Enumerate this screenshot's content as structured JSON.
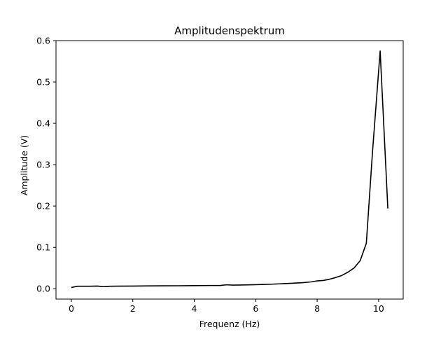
{
  "chart_data": {
    "type": "line",
    "title": "Amplitudenspektrum",
    "xlabel": "Frequenz (Hz)",
    "ylabel": "Amplitude  (V)",
    "xlim": [
      -0.5,
      10.8
    ],
    "ylim": [
      -0.025,
      0.6
    ],
    "xticks": [
      0,
      2,
      4,
      6,
      8,
      10
    ],
    "yticks": [
      0.0,
      0.1,
      0.2,
      0.3,
      0.4,
      0.5,
      0.6
    ],
    "xtick_labels": [
      "0",
      "2",
      "4",
      "6",
      "8",
      "10"
    ],
    "ytick_labels": [
      "0.0",
      "0.1",
      "0.2",
      "0.3",
      "0.4",
      "0.5",
      "0.6"
    ],
    "grid": false,
    "legend": "none",
    "series": [
      {
        "color": "#000000",
        "x": [
          0.0,
          0.2,
          0.4,
          0.6,
          0.85,
          1.05,
          1.25,
          1.5,
          2.0,
          2.5,
          3.0,
          3.5,
          4.0,
          4.5,
          4.85,
          5.05,
          5.25,
          5.5,
          6.0,
          6.5,
          7.0,
          7.5,
          7.8,
          8.0,
          8.2,
          8.4,
          8.6,
          8.8,
          9.0,
          9.2,
          9.4,
          9.6,
          9.8,
          10.05,
          10.3
        ],
        "y": [
          0.003,
          0.006,
          0.006,
          0.006,
          0.0065,
          0.005,
          0.006,
          0.0062,
          0.0065,
          0.0068,
          0.007,
          0.0072,
          0.0075,
          0.0078,
          0.008,
          0.0095,
          0.0088,
          0.009,
          0.0098,
          0.011,
          0.0125,
          0.0145,
          0.0165,
          0.019,
          0.02,
          0.023,
          0.027,
          0.032,
          0.04,
          0.05,
          0.068,
          0.11,
          0.33,
          0.575,
          0.194
        ]
      }
    ]
  }
}
